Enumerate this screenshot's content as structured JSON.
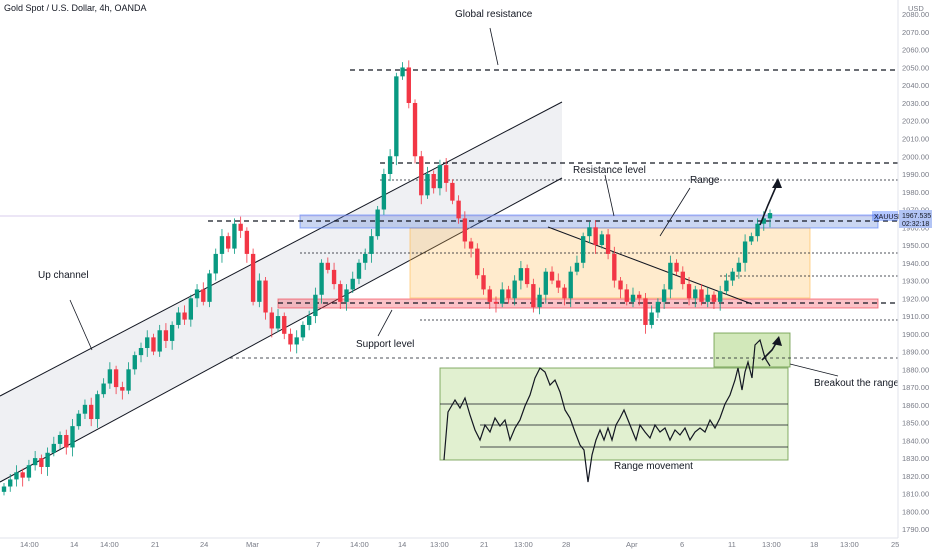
{
  "header": {
    "title": "Gold Spot / U.S. Dollar, 4h, OANDA"
  },
  "axis": {
    "currency": "USD",
    "current_price": "1967.535",
    "countdown": "02:32:18",
    "symbol": "XAUUSD",
    "y_ticks": [
      2080,
      2070,
      2060,
      2050,
      2040,
      2030,
      2020,
      2010,
      2000,
      1990,
      1980,
      1970,
      1960,
      1950,
      1940,
      1930,
      1920,
      1910,
      1900,
      1890,
      1880,
      1870,
      1860,
      1850,
      1840,
      1830,
      1820,
      1810,
      1800,
      1790
    ],
    "x_labels": [
      "14:00",
      "14",
      "14:00",
      "21",
      "24",
      "Mar",
      "7",
      "14:00",
      "14",
      "13:00",
      "21",
      "13:00",
      "28",
      "Apr",
      "6",
      "11",
      "13:00",
      "18",
      "13:00",
      "25"
    ]
  },
  "annotations": {
    "global_resistance": "Global resistance",
    "up_channel": "Up channel",
    "resistance_level": "Resistance level",
    "range": "Range",
    "support_level": "Support level",
    "breakout": "Breakout the range",
    "range_movement": "Range movement"
  },
  "colors": {
    "up": "#089981",
    "down": "#f23645",
    "accent": "#2962ff"
  },
  "chart_data": {
    "type": "candlestick",
    "title": "Gold Spot / U.S. Dollar, 4h, OANDA",
    "ylim": [
      1785,
      2088
    ],
    "levels": {
      "global_resistance": 2050,
      "resistance": 1997,
      "range_top": 1968,
      "support": 1918,
      "breakout_level": 1887
    },
    "close_path": [
      1814,
      1818,
      1822,
      1819,
      1826,
      1830,
      1825,
      1833,
      1838,
      1843,
      1836,
      1848,
      1855,
      1860,
      1852,
      1866,
      1872,
      1880,
      1870,
      1868,
      1880,
      1888,
      1892,
      1898,
      1890,
      1902,
      1896,
      1905,
      1912,
      1908,
      1920,
      1925,
      1918,
      1934,
      1945,
      1955,
      1948,
      1962,
      1958,
      1945,
      1918,
      1930,
      1912,
      1903,
      1910,
      1900,
      1894,
      1898,
      1905,
      1910,
      1922,
      1940,
      1936,
      1928,
      1918,
      1925,
      1931,
      1940,
      1945,
      1955,
      1970,
      1990,
      2000,
      2045,
      2050,
      2030,
      2000,
      1978,
      1990,
      1982,
      1995,
      1985,
      1975,
      1965,
      1952,
      1948,
      1933,
      1925,
      1918,
      1917,
      1925,
      1920,
      1930,
      1937,
      1928,
      1915,
      1922,
      1935,
      1930,
      1926,
      1920,
      1935,
      1940,
      1955,
      1960,
      1950,
      1956,
      1945,
      1930,
      1925,
      1918,
      1922,
      1920,
      1905,
      1912,
      1918,
      1925,
      1940,
      1935,
      1928,
      1920,
      1925,
      1918,
      1922,
      1918,
      1924,
      1930,
      1935,
      1940,
      1952,
      1955,
      1962,
      1965,
      1968
    ]
  }
}
